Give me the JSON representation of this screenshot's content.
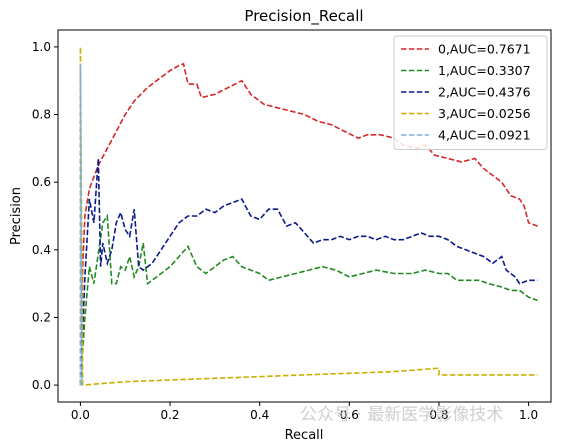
{
  "chart_data": {
    "type": "line",
    "title": "Precision_Recall",
    "xlabel": "Recall",
    "ylabel": "Precision",
    "xlim": [
      -0.05,
      1.05
    ],
    "ylim": [
      -0.05,
      1.05
    ],
    "xticks": [
      0.0,
      0.2,
      0.4,
      0.6,
      0.8,
      1.0
    ],
    "xtick_labels": [
      "0.0",
      "0.2",
      "0.4",
      "0.6",
      "0.8",
      "1.0"
    ],
    "yticks": [
      0.0,
      0.2,
      0.4,
      0.6,
      0.8,
      1.0
    ],
    "ytick_labels": [
      "0.0",
      "0.2",
      "0.4",
      "0.6",
      "0.8",
      "1.0"
    ],
    "grid": false,
    "legend_position": "top-right",
    "series": [
      {
        "name": "0,AUC=0.7671",
        "color": "#d62728",
        "style": "dashed",
        "points": [
          [
            0.0,
            0.0
          ],
          [
            0.005,
            0.35
          ],
          [
            0.01,
            0.5
          ],
          [
            0.02,
            0.58
          ],
          [
            0.04,
            0.65
          ],
          [
            0.06,
            0.7
          ],
          [
            0.08,
            0.75
          ],
          [
            0.1,
            0.8
          ],
          [
            0.12,
            0.84
          ],
          [
            0.15,
            0.88
          ],
          [
            0.18,
            0.91
          ],
          [
            0.2,
            0.93
          ],
          [
            0.22,
            0.945
          ],
          [
            0.23,
            0.95
          ],
          [
            0.24,
            0.89
          ],
          [
            0.26,
            0.89
          ],
          [
            0.27,
            0.85
          ],
          [
            0.3,
            0.86
          ],
          [
            0.33,
            0.88
          ],
          [
            0.36,
            0.9
          ],
          [
            0.38,
            0.86
          ],
          [
            0.41,
            0.83
          ],
          [
            0.44,
            0.82
          ],
          [
            0.47,
            0.81
          ],
          [
            0.5,
            0.8
          ],
          [
            0.53,
            0.78
          ],
          [
            0.56,
            0.77
          ],
          [
            0.59,
            0.75
          ],
          [
            0.62,
            0.73
          ],
          [
            0.64,
            0.74
          ],
          [
            0.67,
            0.74
          ],
          [
            0.7,
            0.73
          ],
          [
            0.72,
            0.71
          ],
          [
            0.75,
            0.7
          ],
          [
            0.77,
            0.71
          ],
          [
            0.79,
            0.68
          ],
          [
            0.82,
            0.67
          ],
          [
            0.85,
            0.66
          ],
          [
            0.88,
            0.67
          ],
          [
            0.9,
            0.64
          ],
          [
            0.92,
            0.62
          ],
          [
            0.94,
            0.6
          ],
          [
            0.95,
            0.58
          ],
          [
            0.96,
            0.56
          ],
          [
            0.98,
            0.55
          ],
          [
            0.99,
            0.53
          ],
          [
            1.0,
            0.48
          ],
          [
            1.02,
            0.47
          ]
        ]
      },
      {
        "name": "1,AUC=0.3307",
        "color": "#228b22",
        "style": "dashed",
        "points": [
          [
            0.0,
            0.0
          ],
          [
            0.01,
            0.2
          ],
          [
            0.02,
            0.35
          ],
          [
            0.03,
            0.3
          ],
          [
            0.05,
            0.48
          ],
          [
            0.06,
            0.5
          ],
          [
            0.07,
            0.3
          ],
          [
            0.08,
            0.3
          ],
          [
            0.09,
            0.35
          ],
          [
            0.1,
            0.34
          ],
          [
            0.11,
            0.38
          ],
          [
            0.12,
            0.32
          ],
          [
            0.13,
            0.35
          ],
          [
            0.14,
            0.42
          ],
          [
            0.15,
            0.3
          ],
          [
            0.17,
            0.32
          ],
          [
            0.2,
            0.35
          ],
          [
            0.22,
            0.38
          ],
          [
            0.24,
            0.41
          ],
          [
            0.26,
            0.35
          ],
          [
            0.28,
            0.33
          ],
          [
            0.3,
            0.35
          ],
          [
            0.32,
            0.37
          ],
          [
            0.34,
            0.38
          ],
          [
            0.36,
            0.35
          ],
          [
            0.38,
            0.34
          ],
          [
            0.4,
            0.33
          ],
          [
            0.42,
            0.31
          ],
          [
            0.45,
            0.32
          ],
          [
            0.48,
            0.33
          ],
          [
            0.51,
            0.34
          ],
          [
            0.54,
            0.35
          ],
          [
            0.57,
            0.34
          ],
          [
            0.6,
            0.32
          ],
          [
            0.63,
            0.33
          ],
          [
            0.66,
            0.34
          ],
          [
            0.7,
            0.33
          ],
          [
            0.74,
            0.33
          ],
          [
            0.77,
            0.34
          ],
          [
            0.8,
            0.33
          ],
          [
            0.82,
            0.33
          ],
          [
            0.84,
            0.31
          ],
          [
            0.86,
            0.31
          ],
          [
            0.89,
            0.31
          ],
          [
            0.91,
            0.3
          ],
          [
            0.94,
            0.29
          ],
          [
            0.96,
            0.28
          ],
          [
            0.98,
            0.28
          ],
          [
            1.0,
            0.26
          ],
          [
            1.02,
            0.25
          ]
        ]
      },
      {
        "name": "2,AUC=0.4376",
        "color": "#0a1a8a",
        "style": "dashed",
        "points": [
          [
            0.0,
            0.0
          ],
          [
            0.01,
            0.32
          ],
          [
            0.02,
            0.55
          ],
          [
            0.03,
            0.48
          ],
          [
            0.04,
            0.67
          ],
          [
            0.045,
            0.35
          ],
          [
            0.05,
            0.42
          ],
          [
            0.06,
            0.36
          ],
          [
            0.07,
            0.4
          ],
          [
            0.08,
            0.48
          ],
          [
            0.09,
            0.51
          ],
          [
            0.1,
            0.46
          ],
          [
            0.11,
            0.44
          ],
          [
            0.12,
            0.52
          ],
          [
            0.13,
            0.35
          ],
          [
            0.14,
            0.34
          ],
          [
            0.16,
            0.36
          ],
          [
            0.18,
            0.4
          ],
          [
            0.2,
            0.44
          ],
          [
            0.22,
            0.48
          ],
          [
            0.24,
            0.5
          ],
          [
            0.26,
            0.5
          ],
          [
            0.28,
            0.52
          ],
          [
            0.3,
            0.51
          ],
          [
            0.32,
            0.53
          ],
          [
            0.34,
            0.54
          ],
          [
            0.36,
            0.55
          ],
          [
            0.38,
            0.5
          ],
          [
            0.4,
            0.49
          ],
          [
            0.42,
            0.52
          ],
          [
            0.44,
            0.52
          ],
          [
            0.46,
            0.47
          ],
          [
            0.48,
            0.48
          ],
          [
            0.5,
            0.45
          ],
          [
            0.52,
            0.42
          ],
          [
            0.54,
            0.43
          ],
          [
            0.56,
            0.43
          ],
          [
            0.58,
            0.44
          ],
          [
            0.6,
            0.43
          ],
          [
            0.62,
            0.44
          ],
          [
            0.64,
            0.44
          ],
          [
            0.66,
            0.43
          ],
          [
            0.68,
            0.44
          ],
          [
            0.7,
            0.43
          ],
          [
            0.72,
            0.43
          ],
          [
            0.74,
            0.44
          ],
          [
            0.76,
            0.45
          ],
          [
            0.78,
            0.44
          ],
          [
            0.8,
            0.44
          ],
          [
            0.82,
            0.43
          ],
          [
            0.84,
            0.41
          ],
          [
            0.86,
            0.4
          ],
          [
            0.88,
            0.39
          ],
          [
            0.9,
            0.38
          ],
          [
            0.92,
            0.36
          ],
          [
            0.94,
            0.38
          ],
          [
            0.95,
            0.34
          ],
          [
            0.97,
            0.32
          ],
          [
            0.98,
            0.3
          ],
          [
            1.0,
            0.31
          ],
          [
            1.02,
            0.31
          ]
        ]
      },
      {
        "name": "3,AUC=0.0256",
        "color": "#c9b000",
        "style": "dashed",
        "points": [
          [
            0.0,
            0.0
          ],
          [
            0.0,
            1.0
          ],
          [
            0.005,
            0.0
          ],
          [
            0.1,
            0.01
          ],
          [
            0.3,
            0.02
          ],
          [
            0.5,
            0.03
          ],
          [
            0.7,
            0.04
          ],
          [
            0.8,
            0.05
          ],
          [
            0.8,
            0.03
          ],
          [
            0.9,
            0.03
          ],
          [
            1.0,
            0.03
          ],
          [
            1.02,
            0.03
          ]
        ]
      },
      {
        "name": "4,AUC=0.0921",
        "color": "#7fb0d8",
        "style": "dashed",
        "points": [
          [
            0.0,
            0.0
          ],
          [
            0.0,
            0.95
          ],
          [
            0.003,
            0.0
          ]
        ]
      }
    ]
  },
  "watermark": "公众号 · 最新医学影像技术"
}
